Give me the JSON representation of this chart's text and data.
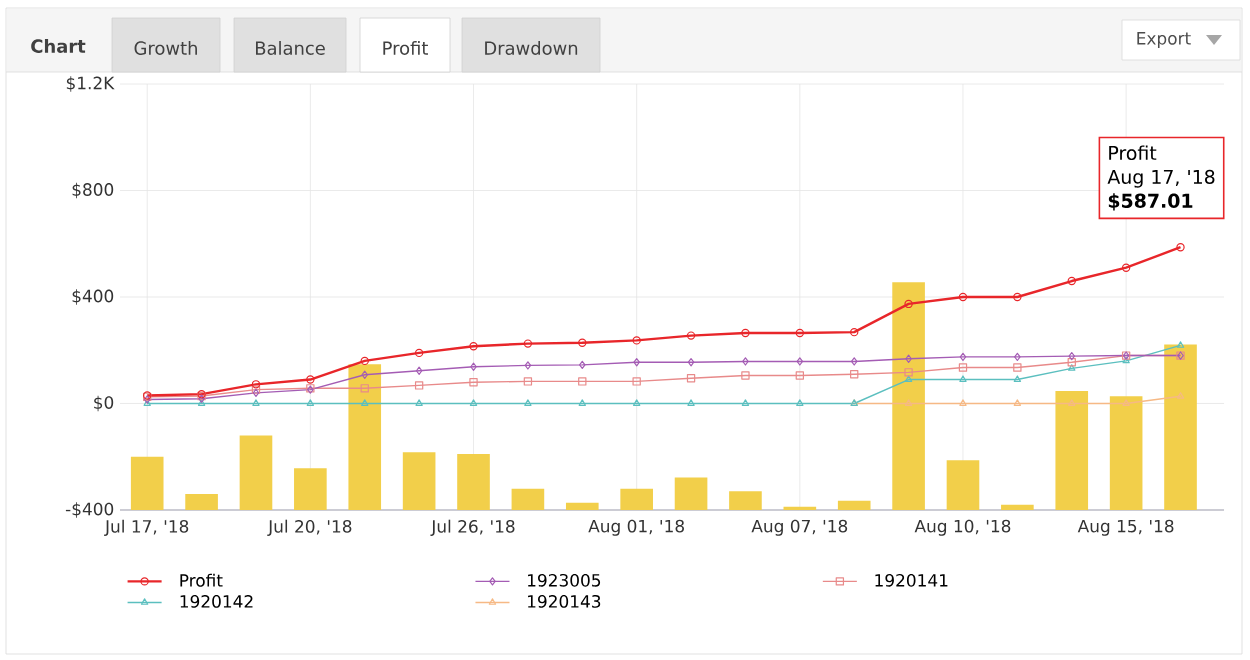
{
  "chart_data": {
    "type": "line",
    "title": "Chart",
    "categories": [
      "Jul 17, '18",
      null,
      null,
      "Jul 20, '18",
      null,
      null,
      "Jul 26, '18",
      null,
      null,
      "Aug 01, '18",
      null,
      null,
      "Aug 07, '18",
      null,
      null,
      "Aug 10, '18",
      null,
      null,
      "Aug 15, '18",
      null
    ],
    "ylim": [
      -400,
      1200
    ],
    "yticks": [
      {
        "value": -400,
        "label": "-$400"
      },
      {
        "value": 0,
        "label": "$0"
      },
      {
        "value": 400,
        "label": "$400"
      },
      {
        "value": 800,
        "label": "$800"
      },
      {
        "value": 1200,
        "label": "$1.2K"
      }
    ],
    "grid": true,
    "legend": "bottom",
    "series": [
      {
        "type": "bar",
        "color": "#f2cf4a",
        "base": [
          -400,
          -400,
          -400,
          -400,
          -400,
          -400,
          -400,
          -400,
          -400,
          -400,
          -400,
          -400,
          -400,
          -400,
          -400,
          -400,
          -400,
          -400,
          -400,
          -400
        ],
        "values": [
          200,
          60,
          280,
          157,
          547,
          217,
          210,
          80,
          27,
          80,
          122,
          70,
          12,
          35,
          855,
          187,
          20,
          447,
          427,
          622
        ]
      },
      {
        "name": "Profit",
        "color": "#e8262a",
        "marker": "circle",
        "values": [
          30,
          35,
          72,
          90,
          160,
          190,
          215,
          225,
          228,
          237,
          255,
          265,
          265,
          268,
          374,
          400,
          400,
          460,
          510,
          587.01
        ]
      },
      {
        "name": "1923005",
        "color": "#a45cb4",
        "marker": "diamond",
        "values": [
          15,
          18,
          40,
          52,
          108,
          123,
          138,
          143,
          145,
          155,
          155,
          158,
          158,
          158,
          168,
          175,
          175,
          178,
          180,
          180
        ]
      },
      {
        "name": "1920141",
        "color": "#e88a8a",
        "marker": "square",
        "values": [
          25,
          28,
          52,
          57,
          57,
          68,
          80,
          83,
          83,
          83,
          95,
          105,
          105,
          110,
          117,
          135,
          135,
          155,
          180,
          180
        ]
      },
      {
        "name": "1920142",
        "color": "#5bbfbf",
        "marker": "triangle",
        "values": [
          0,
          0,
          0,
          0,
          0,
          0,
          0,
          0,
          0,
          0,
          0,
          0,
          0,
          0,
          90,
          90,
          90,
          132,
          160,
          218
        ]
      },
      {
        "name": "1920143",
        "color": "#f6b985",
        "marker": "triangle",
        "values": [
          null,
          null,
          null,
          null,
          null,
          null,
          null,
          null,
          null,
          null,
          null,
          null,
          null,
          0,
          0,
          0,
          0,
          0,
          0,
          27
        ]
      }
    ],
    "annotations": [
      "Growth",
      "Balance",
      "Profit",
      "Drawdown",
      "Export",
      "Profit",
      "Aug 17, '18",
      "$587.01"
    ]
  }
}
